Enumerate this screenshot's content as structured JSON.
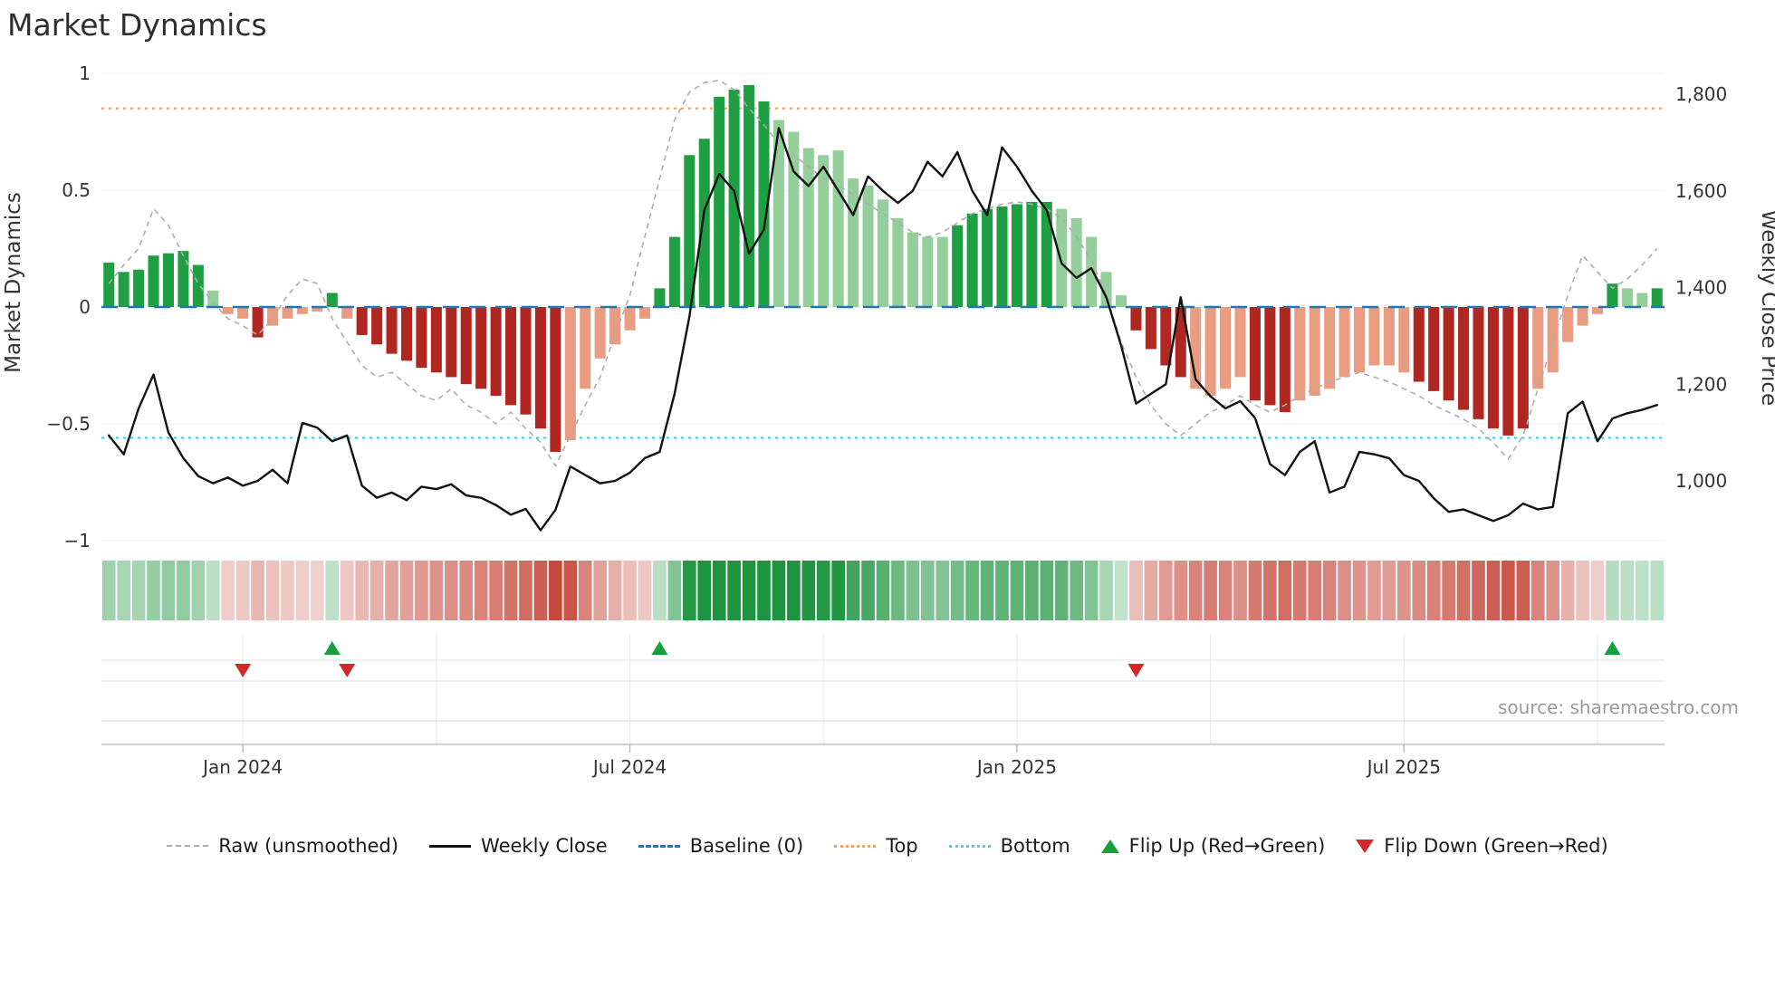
{
  "title": "Market Dynamics",
  "source": "source: sharemaestro.com",
  "axes": {
    "left_label": "Market Dynamics",
    "right_label": "Weekly Close Price"
  },
  "legend": [
    {
      "key": "raw",
      "label": "Raw (unsmoothed)"
    },
    {
      "key": "weekly_close",
      "label": "Weekly Close"
    },
    {
      "key": "baseline",
      "label": "Baseline (0)"
    },
    {
      "key": "top",
      "label": "Top"
    },
    {
      "key": "bottom",
      "label": "Bottom"
    },
    {
      "key": "flip_up",
      "label": "Flip Up (Red→Green)"
    },
    {
      "key": "flip_down",
      "label": "Flip Down (Green→Red)"
    }
  ],
  "colors": {
    "dark_green": "#1f9e44",
    "light_green": "#94ce9a",
    "dark_red": "#b02721",
    "salmon": "#e99c82",
    "baseline": "#1f77b4",
    "top_line": "#f2a25c",
    "bottom_line": "#49cfe8",
    "weekly_close": "#111111",
    "raw_line": "#adadad",
    "flip_up": "#16a03c",
    "flip_down": "#d62728",
    "heat_green": "#1e9440",
    "heat_red": "#c0392b"
  },
  "chart_data": {
    "type": "bar",
    "x_unit": "week",
    "n_points": 105,
    "ylim_left": [
      -1.05,
      1.05
    ],
    "ylim_right": [
      870,
      1855
    ],
    "grid": "bands-only",
    "legend_position": "bottom-center",
    "series": [
      {
        "name": "Oscillator (smoothed)",
        "type": "bar",
        "axis": "left",
        "values": [
          0.19,
          0.15,
          0.16,
          0.22,
          0.23,
          0.24,
          0.18,
          0.07,
          -0.03,
          -0.05,
          -0.13,
          -0.08,
          -0.05,
          -0.03,
          -0.02,
          0.06,
          -0.05,
          -0.12,
          -0.16,
          -0.2,
          -0.23,
          -0.26,
          -0.28,
          -0.3,
          -0.33,
          -0.35,
          -0.38,
          -0.42,
          -0.46,
          -0.52,
          -0.62,
          -0.57,
          -0.35,
          -0.22,
          -0.16,
          -0.1,
          -0.05,
          0.08,
          0.3,
          0.65,
          0.72,
          0.9,
          0.93,
          0.95,
          0.88,
          0.8,
          0.75,
          0.68,
          0.65,
          0.67,
          0.55,
          0.52,
          0.46,
          0.38,
          0.32,
          0.3,
          0.3,
          0.35,
          0.4,
          0.42,
          0.43,
          0.44,
          0.45,
          0.45,
          0.42,
          0.38,
          0.3,
          0.15,
          0.05,
          -0.1,
          -0.18,
          -0.25,
          -0.3,
          -0.35,
          -0.38,
          -0.35,
          -0.3,
          -0.4,
          -0.42,
          -0.45,
          -0.4,
          -0.38,
          -0.35,
          -0.3,
          -0.28,
          -0.25,
          -0.25,
          -0.28,
          -0.32,
          -0.36,
          -0.4,
          -0.44,
          -0.48,
          -0.52,
          -0.55,
          -0.52,
          -0.35,
          -0.28,
          -0.15,
          -0.08,
          -0.03,
          0.1,
          0.08,
          0.06,
          0.08
        ],
        "shades": [
          "dg",
          "dg",
          "dg",
          "dg",
          "dg",
          "dg",
          "dg",
          "lg",
          "sr",
          "sr",
          "dr",
          "sr",
          "sr",
          "sr",
          "sr",
          "dg",
          "sr",
          "dr",
          "dr",
          "dr",
          "dr",
          "dr",
          "dr",
          "dr",
          "dr",
          "dr",
          "dr",
          "dr",
          "dr",
          "dr",
          "dr",
          "sr",
          "sr",
          "sr",
          "sr",
          "sr",
          "sr",
          "dg",
          "dg",
          "dg",
          "dg",
          "dg",
          "dg",
          "dg",
          "dg",
          "lg",
          "lg",
          "lg",
          "lg",
          "lg",
          "lg",
          "lg",
          "lg",
          "lg",
          "lg",
          "lg",
          "lg",
          "dg",
          "dg",
          "dg",
          "dg",
          "dg",
          "dg",
          "dg",
          "lg",
          "lg",
          "lg",
          "lg",
          "lg",
          "dr",
          "dr",
          "dr",
          "dr",
          "sr",
          "sr",
          "sr",
          "sr",
          "dr",
          "dr",
          "dr",
          "sr",
          "sr",
          "sr",
          "sr",
          "sr",
          "sr",
          "sr",
          "sr",
          "dr",
          "dr",
          "dr",
          "dr",
          "dr",
          "dr",
          "dr",
          "dr",
          "sr",
          "sr",
          "sr",
          "sr",
          "sr",
          "dg",
          "lg",
          "lg",
          "dg"
        ]
      },
      {
        "name": "Weekly Close",
        "type": "line",
        "axis": "right",
        "values": [
          1094,
          1055,
          1150,
          1220,
          1100,
          1047,
          1010,
          995,
          1007,
          990,
          1000,
          1023,
          995,
          1120,
          1110,
          1082,
          1094,
          990,
          965,
          976,
          960,
          988,
          983,
          993,
          970,
          965,
          950,
          930,
          942,
          898,
          940,
          1030,
          1012,
          995,
          1000,
          1017,
          1047,
          1060,
          1180,
          1340,
          1560,
          1635,
          1600,
          1470,
          1520,
          1730,
          1640,
          1610,
          1650,
          1600,
          1550,
          1630,
          1600,
          1575,
          1600,
          1660,
          1630,
          1680,
          1600,
          1550,
          1690,
          1650,
          1600,
          1560,
          1450,
          1420,
          1440,
          1380,
          1280,
          1160,
          1180,
          1200,
          1380,
          1210,
          1175,
          1150,
          1165,
          1130,
          1035,
          1012,
          1060,
          1082,
          976,
          988,
          1060,
          1055,
          1047,
          1012,
          1000,
          964,
          936,
          941,
          929,
          917,
          929,
          953,
          941,
          946,
          1140,
          1164,
          1082,
          1129,
          1140,
          1147,
          1157
        ]
      },
      {
        "name": "Raw (unsmoothed)",
        "type": "line",
        "axis": "left",
        "values": [
          0.1,
          0.18,
          0.25,
          0.42,
          0.35,
          0.22,
          0.1,
          0.02,
          -0.05,
          -0.08,
          -0.12,
          -0.05,
          0.05,
          0.12,
          0.1,
          -0.05,
          -0.15,
          -0.25,
          -0.3,
          -0.28,
          -0.33,
          -0.38,
          -0.4,
          -0.35,
          -0.42,
          -0.45,
          -0.5,
          -0.45,
          -0.52,
          -0.58,
          -0.68,
          -0.55,
          -0.42,
          -0.3,
          -0.12,
          0.05,
          0.3,
          0.55,
          0.8,
          0.92,
          0.96,
          0.97,
          0.93,
          0.85,
          0.78,
          0.7,
          0.65,
          0.6,
          0.55,
          0.52,
          0.48,
          0.44,
          0.4,
          0.36,
          0.32,
          0.3,
          0.32,
          0.36,
          0.4,
          0.42,
          0.44,
          0.45,
          0.44,
          0.42,
          0.38,
          0.3,
          0.2,
          0.05,
          -0.15,
          -0.3,
          -0.42,
          -0.5,
          -0.55,
          -0.5,
          -0.45,
          -0.42,
          -0.38,
          -0.42,
          -0.45,
          -0.42,
          -0.38,
          -0.35,
          -0.32,
          -0.3,
          -0.28,
          -0.3,
          -0.32,
          -0.35,
          -0.38,
          -0.42,
          -0.45,
          -0.48,
          -0.52,
          -0.58,
          -0.65,
          -0.55,
          -0.35,
          -0.15,
          0.05,
          0.22,
          0.15,
          0.08,
          0.12,
          0.18,
          0.25
        ]
      }
    ],
    "reference_lines": {
      "baseline": 0,
      "top": 0.85,
      "bottom": -0.56
    },
    "flip_up_indices": [
      15,
      37,
      101
    ],
    "flip_down_indices": [
      9,
      16,
      69
    ],
    "xticks": [
      {
        "i": 9,
        "label": "Jan 2024"
      },
      {
        "i": 35,
        "label": "Jul 2024"
      },
      {
        "i": 61,
        "label": "Jan 2025"
      },
      {
        "i": 87,
        "label": "Jul 2025"
      }
    ],
    "minor_grid_indices": [
      22,
      48,
      74,
      100
    ],
    "yticks_left": [
      {
        "v": 1,
        "label": "1"
      },
      {
        "v": 0.5,
        "label": "0.5"
      },
      {
        "v": 0,
        "label": "0"
      },
      {
        "v": -0.5,
        "label": "−0.5"
      },
      {
        "v": -1,
        "label": "−1"
      }
    ],
    "yticks_right": [
      {
        "v": 1800,
        "label": "1,800"
      },
      {
        "v": 1600,
        "label": "1,600"
      },
      {
        "v": 1400,
        "label": "1,400"
      },
      {
        "v": 1200,
        "label": "1,200"
      },
      {
        "v": 1000,
        "label": "1,000"
      }
    ]
  }
}
